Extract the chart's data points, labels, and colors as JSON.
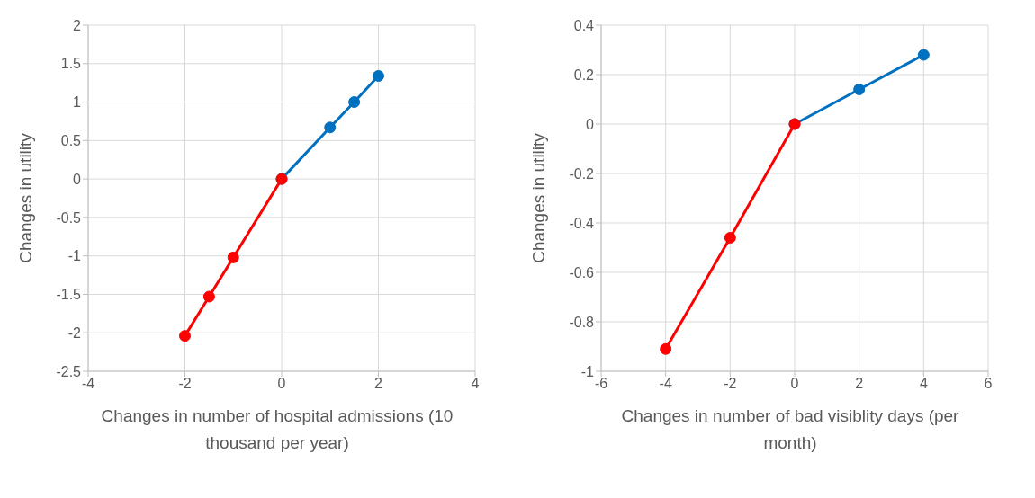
{
  "chart_data": [
    {
      "type": "line",
      "xlabel": "Changes in number of hospital admissions (10 thousand per year)",
      "ylabel": "Changes in utility",
      "xlim": [
        -4,
        4
      ],
      "xticks": [
        -4,
        -2,
        0,
        2,
        4
      ],
      "ylim": [
        -2.5,
        2
      ],
      "yticks": [
        -2.5,
        -2,
        -1.5,
        -1,
        -0.5,
        0,
        0.5,
        1,
        1.5,
        2
      ],
      "grid": true,
      "marker": "circle",
      "series": [
        {
          "color": "#0070c0",
          "x": [
            0,
            1,
            1.5,
            2
          ],
          "values": [
            0,
            0.67,
            1.0,
            1.34
          ]
        },
        {
          "color": "#ff0000",
          "x": [
            -2,
            -1.5,
            -1,
            0
          ],
          "values": [
            -2.04,
            -1.53,
            -1.02,
            0
          ]
        }
      ]
    },
    {
      "type": "line",
      "xlabel": "Changes in number of bad visiblity days (per month)",
      "ylabel": "Changes in utility",
      "xlim": [
        -6,
        6
      ],
      "xticks": [
        -6,
        -4,
        -2,
        0,
        2,
        4,
        6
      ],
      "ylim": [
        -1,
        0.4
      ],
      "yticks": [
        -1,
        -0.8,
        -0.6,
        -0.4,
        -0.2,
        0,
        0.2,
        0.4
      ],
      "grid": true,
      "marker": "circle",
      "series": [
        {
          "color": "#0070c0",
          "x": [
            0,
            2,
            4
          ],
          "values": [
            0,
            0.14,
            0.28
          ]
        },
        {
          "color": "#ff0000",
          "x": [
            -4,
            -2,
            0
          ],
          "values": [
            -0.91,
            -0.46,
            0
          ]
        }
      ]
    }
  ]
}
